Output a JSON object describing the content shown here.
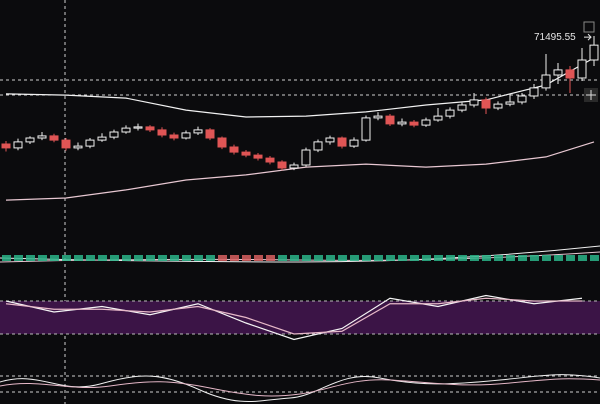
{
  "chart_data": [
    {
      "type": "candlestick",
      "categories": [
        null,
        null,
        null,
        null,
        null,
        null,
        null,
        null,
        null,
        null,
        null,
        null,
        null,
        null,
        null,
        null,
        null,
        null,
        null,
        null,
        null,
        null,
        null,
        null,
        null,
        null,
        null,
        null,
        null,
        null,
        null,
        null,
        null,
        null,
        null,
        null,
        null,
        null,
        null,
        null,
        null,
        null,
        null,
        null,
        null,
        null,
        null,
        null,
        null,
        null
      ],
      "open": [
        68200,
        68070,
        68270,
        68400,
        68470,
        68330,
        68070,
        68130,
        68330,
        68430,
        68600,
        68730,
        68770,
        68670,
        68500,
        68400,
        68570,
        68670,
        68400,
        68100,
        67930,
        67830,
        67730,
        67600,
        67400,
        67500,
        68000,
        68270,
        68400,
        68130,
        68330,
        69070,
        69130,
        68870,
        68930,
        68830,
        69000,
        69130,
        69330,
        69500,
        69670,
        69400,
        69530,
        69600,
        69800,
        70070,
        70500,
        70670,
        70400,
        71000
      ],
      "high": [
        68300,
        68380,
        68460,
        68600,
        68540,
        68400,
        68250,
        68400,
        68560,
        68680,
        68820,
        68880,
        68830,
        68760,
        68580,
        68650,
        68780,
        68730,
        68450,
        68180,
        68000,
        67900,
        67800,
        67660,
        67580,
        68080,
        68350,
        68480,
        68450,
        68420,
        69150,
        69260,
        69200,
        69050,
        69000,
        69080,
        69400,
        69420,
        69580,
        69900,
        69750,
        69620,
        69850,
        69900,
        70200,
        71200,
        70900,
        70800,
        71400,
        71800
      ],
      "low": [
        67950,
        67990,
        68200,
        68330,
        68260,
        67980,
        67990,
        68060,
        68270,
        68360,
        68540,
        68650,
        68600,
        68420,
        68320,
        68350,
        68500,
        68330,
        68030,
        67850,
        67760,
        67650,
        67520,
        67320,
        67330,
        67450,
        67930,
        68180,
        68050,
        68070,
        68280,
        68990,
        68800,
        68790,
        68760,
        68770,
        68940,
        69050,
        69260,
        69420,
        69200,
        69330,
        69460,
        69520,
        69700,
        69980,
        70200,
        69900,
        70300,
        70800
      ],
      "close": [
        68070,
        68270,
        68400,
        68470,
        68330,
        68070,
        68130,
        68330,
        68430,
        68600,
        68730,
        68770,
        68670,
        68500,
        68400,
        68570,
        68670,
        68400,
        68100,
        67930,
        67830,
        67730,
        67600,
        67400,
        67500,
        68000,
        68270,
        68400,
        68130,
        68330,
        69070,
        69130,
        68870,
        68930,
        68830,
        69000,
        69130,
        69330,
        69500,
        69670,
        69400,
        69530,
        69600,
        69800,
        70070,
        70500,
        70670,
        70400,
        71000,
        71495.55
      ],
      "up_color": "#f0f0f0",
      "down_color": "#e05555",
      "band_x": [
        0,
        5,
        10,
        15,
        20,
        25,
        30,
        35,
        40,
        45,
        49
      ],
      "bands": [
        {
          "color": "#f2f2f2",
          "values": [
            69870,
            69830,
            69730,
            69330,
            69100,
            69130,
            69270,
            69500,
            69670,
            70170,
            71070
          ]
        },
        {
          "color": "#e8c8d2",
          "values": [
            66330,
            66400,
            66670,
            67000,
            67170,
            67430,
            67530,
            67430,
            67530,
            67770,
            68270
          ]
        }
      ],
      "ylim": [
        66000,
        72000
      ]
    },
    {
      "type": "line",
      "x": [
        0,
        4,
        8,
        12,
        16,
        20,
        24,
        28,
        32,
        36,
        40,
        44,
        48
      ],
      "series": [
        {
          "color": "#f5f5f5",
          "values": [
            80,
            60,
            70,
            55,
            75,
            40,
            10,
            30,
            85,
            70,
            90,
            75,
            85
          ]
        },
        {
          "color": "#e6b8c8",
          "values": [
            75,
            65,
            65,
            60,
            70,
            50,
            20,
            25,
            75,
            75,
            85,
            80,
            80
          ]
        }
      ],
      "band": [
        20,
        80
      ],
      "band_color": "#3b1446",
      "ylim": [
        0,
        100
      ]
    }
  ]
}
